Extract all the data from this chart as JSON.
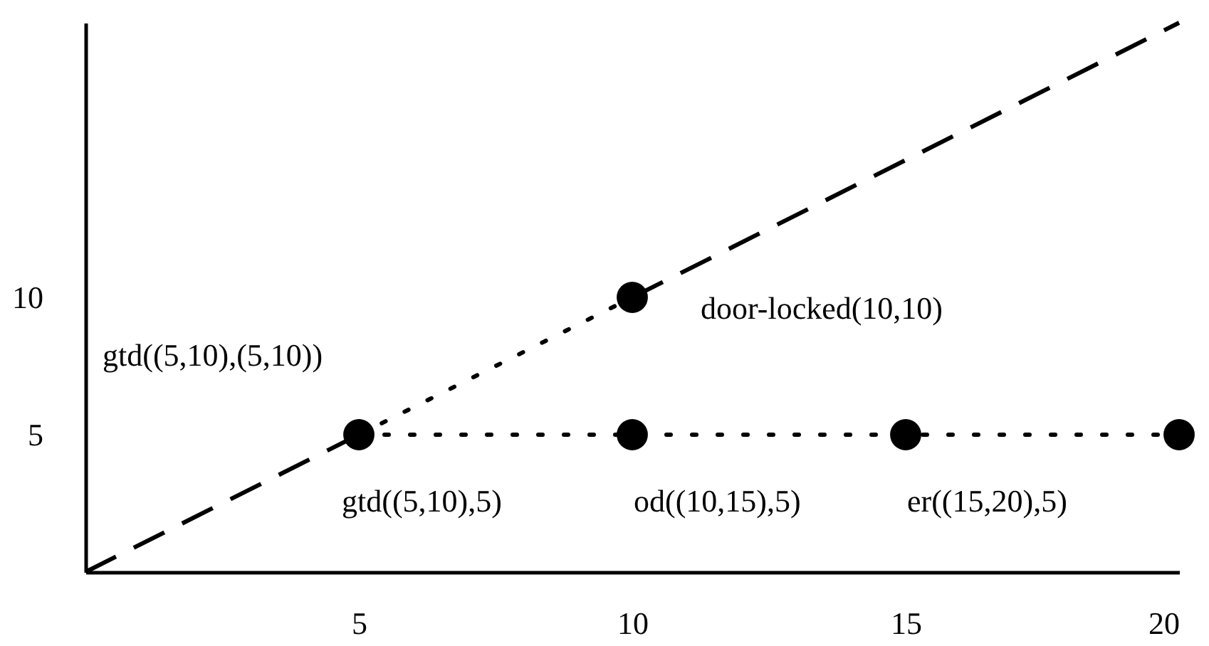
{
  "chart_data": {
    "type": "line",
    "xlim": [
      0,
      20
    ],
    "ylim": [
      0,
      20
    ],
    "xticks": [
      5,
      10,
      15,
      20
    ],
    "yticks": [
      5,
      10
    ],
    "grid": false,
    "series": [
      {
        "line_style": "dashed",
        "color": "#000000",
        "x": [
          0,
          5
        ],
        "values": [
          0,
          5
        ]
      },
      {
        "line_style": "dashed",
        "color": "#000000",
        "x": [
          10,
          20
        ],
        "values": [
          10,
          20
        ]
      },
      {
        "line_style": "dotted",
        "color": "#000000",
        "x": [
          5,
          10
        ],
        "values": [
          5,
          10
        ]
      },
      {
        "line_style": "dotted",
        "color": "#000000",
        "x": [
          5,
          20
        ],
        "values": [
          5,
          5
        ]
      },
      {
        "type": "scatter",
        "marker": "circle",
        "color": "#000000",
        "x": [
          5,
          10,
          10,
          15,
          20
        ],
        "values": [
          5,
          10,
          5,
          5,
          5
        ]
      }
    ],
    "annotations": [
      {
        "text": "door-locked(10,10)",
        "x": 10,
        "y": 10
      },
      "gtd((5,10),(5,10))",
      {
        "text": "gtd((5,10),5)",
        "x": 5,
        "y": 5
      },
      {
        "text": "od((10,15),5)",
        "x": 10,
        "y": 5
      },
      {
        "text": "er((15,20),5)",
        "x": 15,
        "y": 5
      }
    ]
  }
}
